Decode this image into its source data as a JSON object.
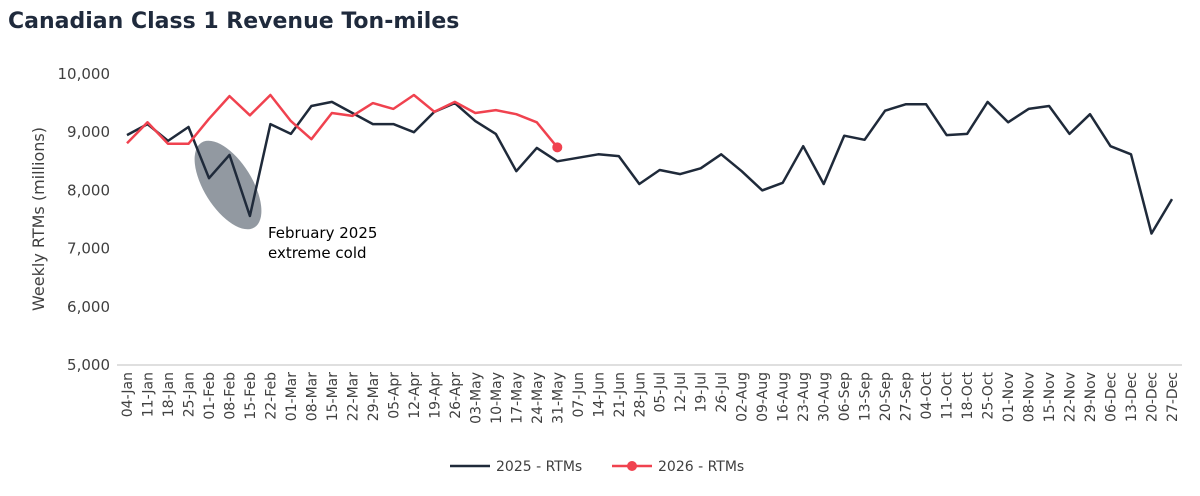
{
  "chart_data": {
    "type": "line",
    "title": "Canadian Class 1 Revenue Ton-miles",
    "y_label": "Weekly RTMs (millions)",
    "annotation": [
      "February 2025",
      "extreme cold"
    ],
    "categories": [
      "04-Jan",
      "11-Jan",
      "18-Jan",
      "25-Jan",
      "01-Feb",
      "08-Feb",
      "15-Feb",
      "22-Feb",
      "01-Mar",
      "08-Mar",
      "15-Mar",
      "22-Mar",
      "29-Mar",
      "05-Apr",
      "12-Apr",
      "19-Apr",
      "26-Apr",
      "03-May",
      "10-May",
      "17-May",
      "24-May",
      "31-May",
      "07-Jun",
      "14-Jun",
      "21-Jun",
      "28-Jun",
      "05-Jul",
      "12-Jul",
      "19-Jul",
      "26-Jul",
      "02-Aug",
      "09-Aug",
      "16-Aug",
      "23-Aug",
      "30-Aug",
      "06-Sep",
      "13-Sep",
      "20-Sep",
      "27-Sep",
      "04-Oct",
      "11-Oct",
      "18-Oct",
      "25-Oct",
      "01-Nov",
      "08-Nov",
      "15-Nov",
      "22-Nov",
      "29-Nov",
      "06-Dec",
      "13-Dec",
      "20-Dec",
      "27-Dec"
    ],
    "series": [
      {
        "name": "2025 - RTMs",
        "color": "#1f2a3a",
        "marker": false,
        "values": [
          8950,
          9140,
          8850,
          9090,
          8210,
          8610,
          7560,
          9140,
          8970,
          9450,
          9520,
          9330,
          9140,
          9140,
          9000,
          9350,
          9500,
          9190,
          8970,
          8330,
          8730,
          8500,
          8560,
          8620,
          8590,
          8110,
          8350,
          8280,
          8380,
          8620,
          8330,
          8000,
          8130,
          8760,
          8110,
          8940,
          8870,
          9370,
          9480,
          9480,
          8950,
          8970,
          9520,
          9170,
          9400,
          9450,
          8970,
          9310,
          8760,
          8620,
          7260,
          7850
        ]
      },
      {
        "name": "2026 - RTMs",
        "color": "#f0424f",
        "marker": true,
        "values": [
          8810,
          9170,
          8800,
          8800,
          9230,
          9620,
          9290,
          9640,
          9190,
          8880,
          9330,
          9280,
          9500,
          9400,
          9640,
          9350,
          9520,
          9330,
          9380,
          9310,
          9170,
          8740,
          null,
          null,
          null,
          null,
          null,
          null,
          null,
          null,
          null,
          null,
          null,
          null,
          null,
          null,
          null,
          null,
          null,
          null,
          null,
          null,
          null,
          null,
          null,
          null,
          null,
          null,
          null,
          null,
          null,
          null
        ]
      }
    ],
    "ylim": [
      5000,
      10000
    ],
    "yticks": [
      {
        "value": 5000,
        "label": "5,000"
      },
      {
        "value": 6000,
        "label": "6,000"
      },
      {
        "value": 7000,
        "label": "7,000"
      },
      {
        "value": 8000,
        "label": "8,000"
      },
      {
        "value": 9000,
        "label": "9,000"
      },
      {
        "value": 10000,
        "label": "10,000"
      }
    ],
    "grid": false,
    "legend": "bottom"
  }
}
